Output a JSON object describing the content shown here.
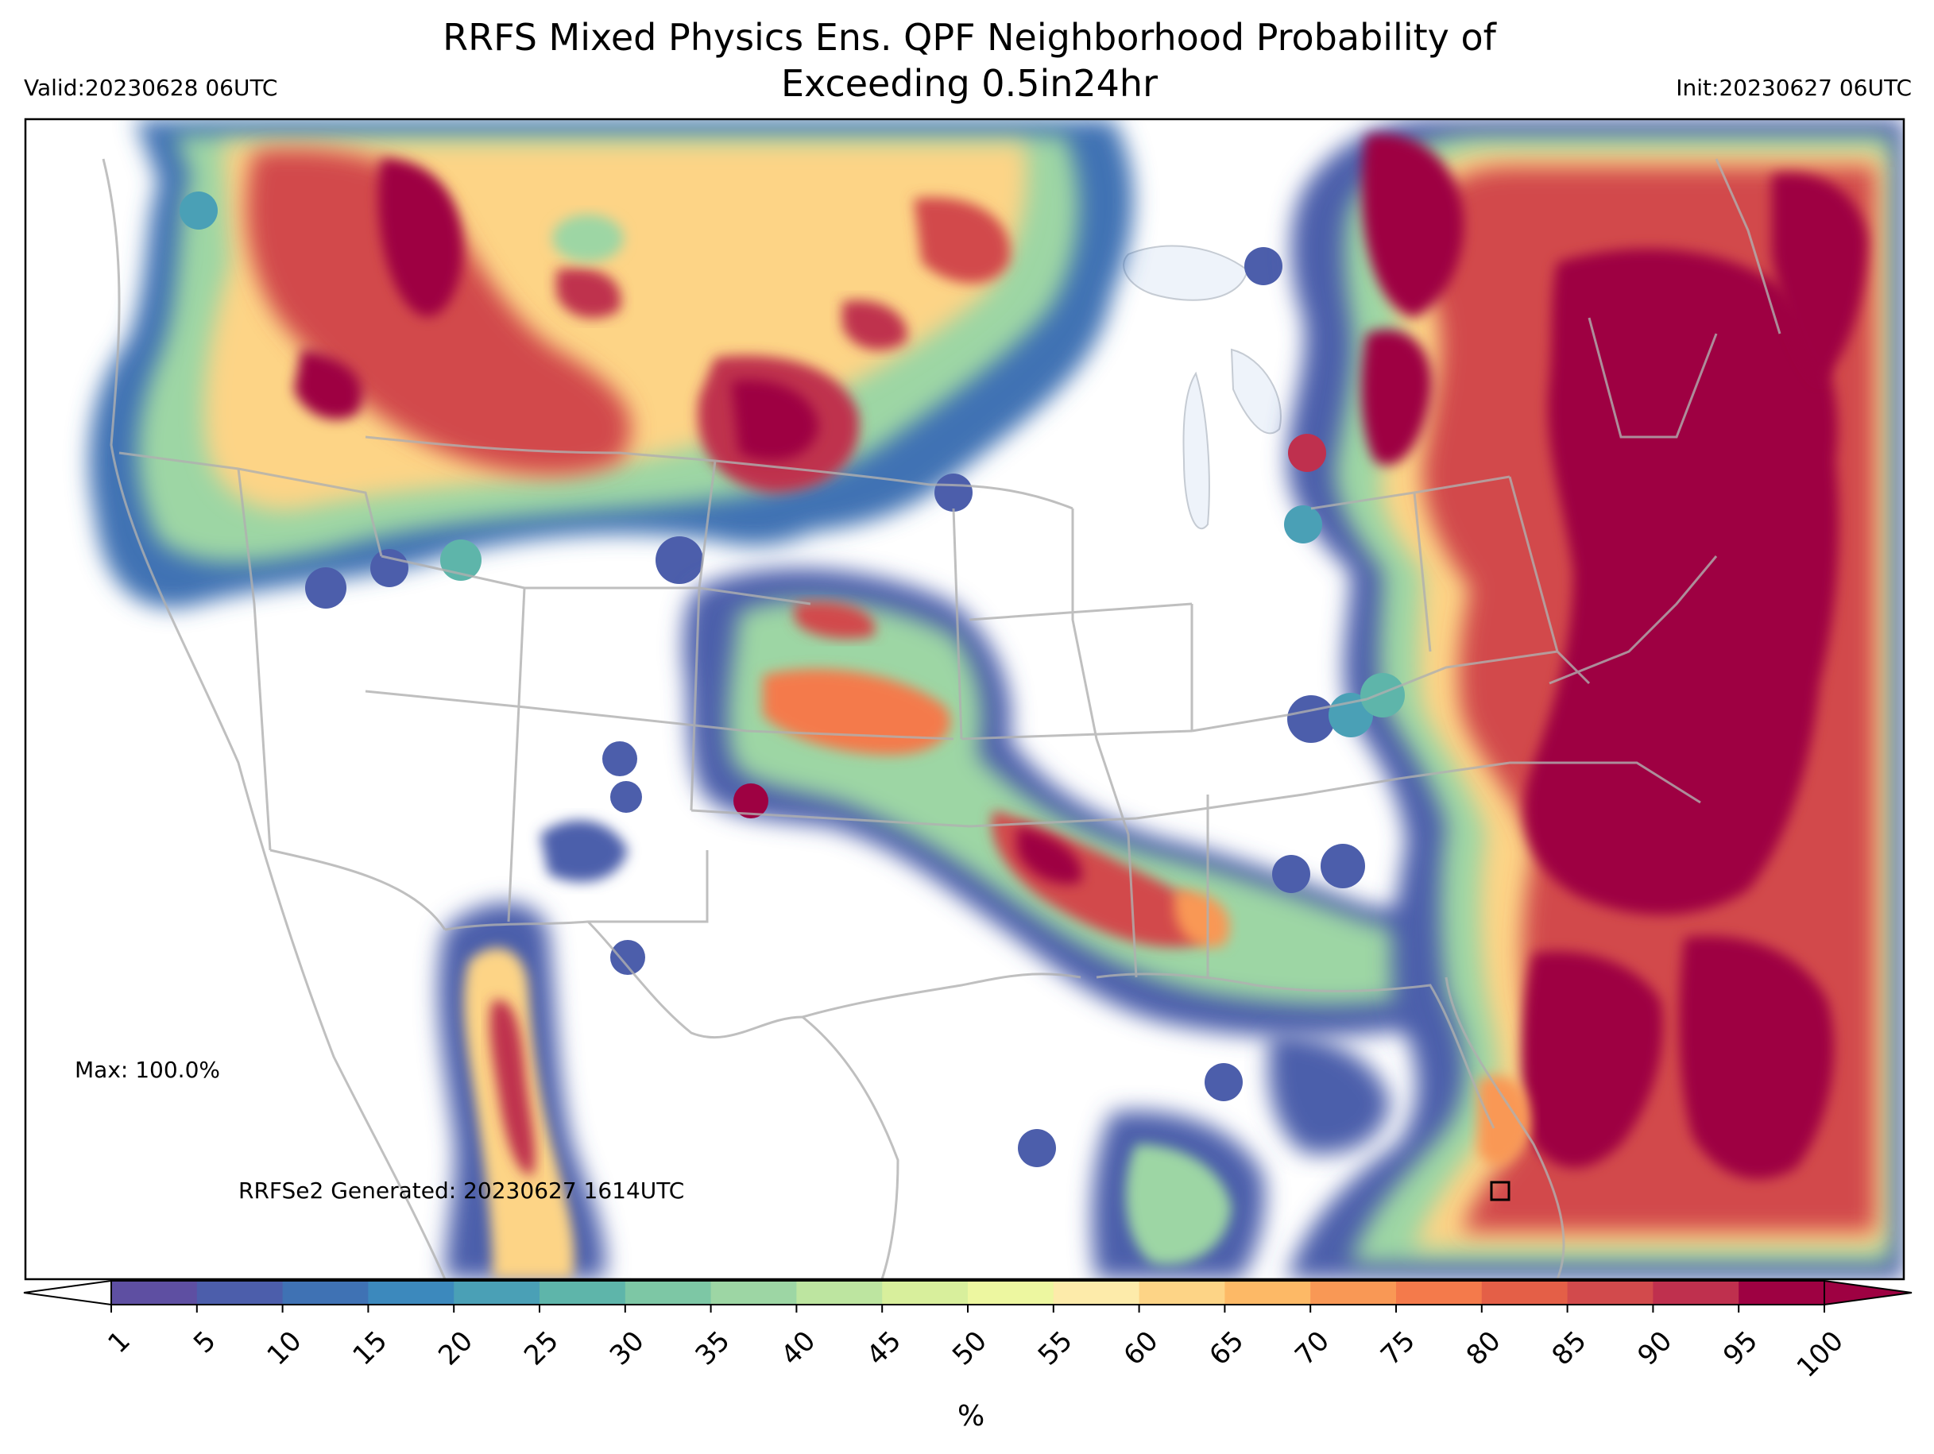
{
  "title": "RRFS Mixed Physics Ens. QPF Neighborhood Probability of Exceeding 0.5in24hr",
  "title_line1": "RRFS Mixed Physics Ens. QPF Neighborhood Probability of",
  "title_line2": "Exceeding 0.5in24hr",
  "valid": "Valid:20230628 06UTC",
  "init": "Init:20230627 06UTC",
  "max_label": "Max: 100.0%",
  "generated": "RRFSe2 Generated: 20230627 1614UTC",
  "colorbar": {
    "unit": "%",
    "ticks": [
      "1",
      "5",
      "10",
      "15",
      "20",
      "25",
      "30",
      "35",
      "40",
      "45",
      "50",
      "55",
      "60",
      "65",
      "70",
      "75",
      "80",
      "85",
      "90",
      "95",
      "100"
    ],
    "colors": [
      "#5e4fa2",
      "#4c5eab",
      "#3f72b4",
      "#3c89bd",
      "#4aa0b6",
      "#5eb5aa",
      "#7dc7a5",
      "#9dd6a4",
      "#bde5a0",
      "#d8ef9c",
      "#edf7a0",
      "#fdebaa",
      "#fdd486",
      "#fdb966",
      "#f99855",
      "#f47a4b",
      "#e45f47",
      "#d24a4c",
      "#bf304e",
      "#9e0142"
    ],
    "extend": "both"
  },
  "map": {
    "projection": "CONUS Lambert Conformal",
    "colors": {
      "background": "#ffffff",
      "borders": "#b0b0b0",
      "lakes": "#eef3fa",
      "dark_red": "#9e0142"
    }
  }
}
